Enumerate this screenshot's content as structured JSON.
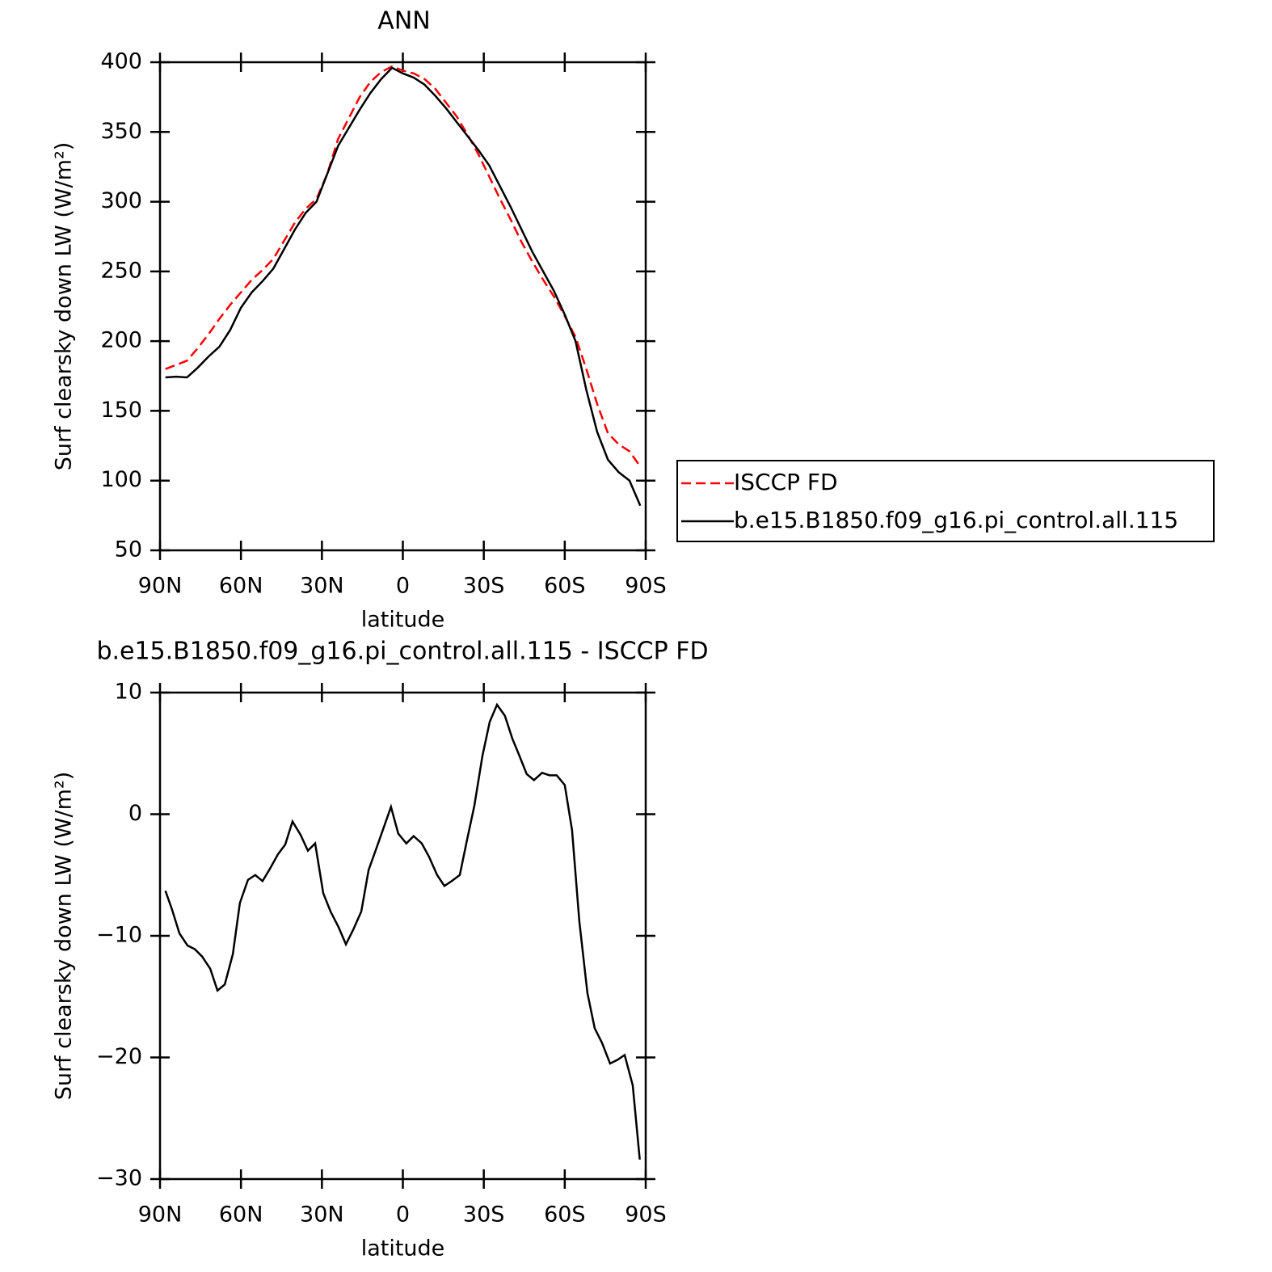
{
  "chart_data": [
    {
      "type": "line",
      "title": "ANN",
      "xlabel": "latitude",
      "ylabel": "Surf clearsky down LW (W/m²)",
      "x": [
        88,
        84,
        80,
        76,
        72,
        68,
        64,
        60,
        56,
        52,
        48,
        44,
        40,
        36,
        32,
        28,
        24,
        20,
        16,
        12,
        8,
        4,
        0,
        -4,
        -8,
        -12,
        -16,
        -20,
        -24,
        -28,
        -32,
        -36,
        -40,
        -44,
        -48,
        -52,
        -56,
        -60,
        -64,
        -68,
        -72,
        -76,
        -80,
        -84,
        -88
      ],
      "series": [
        {
          "name": "ISCCP FD",
          "color": "#ff0000",
          "dash": true,
          "values": [
            180,
            183,
            186,
            195,
            205,
            216,
            226,
            235,
            244,
            251,
            259,
            272,
            285,
            295,
            302,
            320,
            345,
            360,
            375,
            386,
            393,
            397,
            394,
            392,
            388,
            381,
            371,
            361,
            348,
            334,
            318,
            302,
            287,
            271,
            257,
            244,
            232,
            218,
            203,
            180,
            155,
            134,
            126,
            121,
            110
          ]
        },
        {
          "name": "b.e15.B1850.f09_g16.pi_control.all.115",
          "color": "#000000",
          "dash": false,
          "values": [
            174,
            174.5,
            174,
            181,
            189,
            196,
            208,
            224,
            235,
            243,
            252,
            266,
            280,
            292,
            300,
            320,
            340,
            353,
            366,
            378,
            388,
            396,
            392,
            389,
            384,
            376,
            367,
            357,
            347,
            337,
            326,
            311,
            296,
            280,
            264,
            250,
            236,
            219,
            200,
            165,
            135,
            115,
            106,
            100,
            82
          ]
        }
      ],
      "xlim": [
        90,
        -90
      ],
      "xticks": [
        {
          "value": 90,
          "label": "90N"
        },
        {
          "value": 60,
          "label": "60N"
        },
        {
          "value": 30,
          "label": "30N"
        },
        0,
        {
          "value": -30,
          "label": "30S"
        },
        {
          "value": -60,
          "label": "60S"
        },
        {
          "value": -90,
          "label": "90S"
        }
      ],
      "ylim": [
        50,
        400
      ],
      "yticks": [
        50,
        100,
        150,
        200,
        250,
        300,
        350,
        400
      ],
      "legend": "right"
    },
    {
      "type": "line",
      "title": "b.e15.B1850.f09_g16.pi_control.all.115 - ISCCP FD",
      "xlabel": "latitude",
      "ylabel": "Surf clearsky down LW (W/m²)",
      "x": [
        88,
        85.6,
        82.8,
        79.8,
        77.1,
        74.4,
        71.4,
        68.7,
        66,
        63,
        60.4,
        57.4,
        54.7,
        52,
        49.3,
        46.3,
        43.6,
        40.9,
        37.9,
        35.2,
        32.5,
        29.5,
        26.8,
        23.8,
        21.1,
        18.4,
        15.4,
        12.7,
        9.8,
        7.1,
        4.4,
        1.7,
        -1.3,
        -4,
        -7,
        -9.7,
        -12.7,
        -15.4,
        -18.1,
        -21.1,
        -23.8,
        -26.5,
        -29.5,
        -32.2,
        -34.9,
        -37.8,
        -40.6,
        -43.2,
        -45.9,
        -48.6,
        -51.6,
        -54.3,
        -57,
        -60,
        -62.7,
        -65.4,
        -68.4,
        -71.1,
        -73.8,
        -76.8,
        -79.5,
        -82.2,
        -85.2,
        -87.8
      ],
      "values": [
        -6.3,
        -7.8,
        -9.8,
        -10.8,
        -11.1,
        -11.7,
        -12.7,
        -14.5,
        -14.0,
        -11.5,
        -7.3,
        -5.4,
        -5.0,
        -5.5,
        -4.5,
        -3.3,
        -2.5,
        -0.6,
        -1.7,
        -3.0,
        -2.4,
        -6.5,
        -8.0,
        -9.3,
        -10.7,
        -9.5,
        -8.0,
        -4.6,
        -2.8,
        -1.1,
        0.6,
        -1.6,
        -2.4,
        -1.8,
        -2.4,
        -3.5,
        -5.0,
        -5.9,
        -5.5,
        -5.0,
        -2.1,
        0.7,
        4.8,
        7.6,
        9.0,
        8.1,
        6.2,
        4.8,
        3.3,
        2.8,
        3.4,
        3.2,
        3.2,
        2.4,
        -1.3,
        -8.8,
        -14.7,
        -17.6,
        -18.8,
        -20.5,
        -20.2,
        -19.8,
        -22.3,
        -28.4
      ],
      "color": "#000000",
      "xlim": [
        90,
        -90
      ],
      "xticks": [
        {
          "value": 90,
          "label": "90N"
        },
        {
          "value": 60,
          "label": "60N"
        },
        {
          "value": 30,
          "label": "30N"
        },
        0,
        {
          "value": -30,
          "label": "30S"
        },
        {
          "value": -60,
          "label": "60S"
        },
        {
          "value": -90,
          "label": "90S"
        }
      ],
      "ylim": [
        -30,
        10
      ],
      "yticks": [
        {
          "value": -30,
          "label": "−30"
        },
        {
          "value": -20,
          "label": "−20"
        },
        {
          "value": -10,
          "label": "−10"
        },
        0,
        10
      ]
    }
  ]
}
